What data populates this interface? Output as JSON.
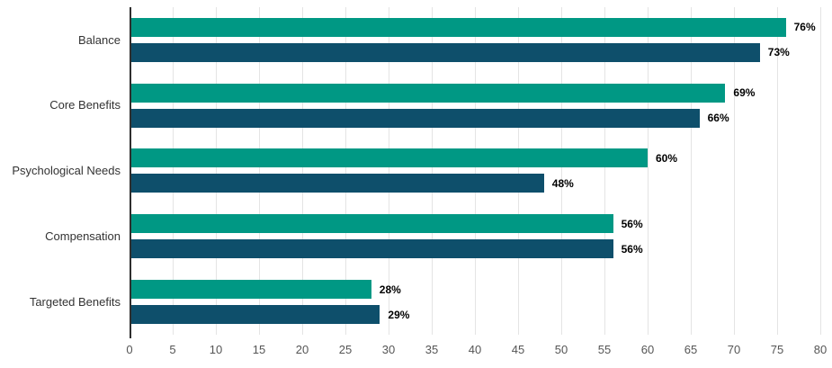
{
  "chart_data": {
    "type": "bar",
    "orientation": "horizontal",
    "title": "",
    "xlabel": "",
    "ylabel": "",
    "xlim": [
      0,
      80
    ],
    "x_ticks": [
      0,
      5,
      10,
      15,
      20,
      25,
      30,
      35,
      40,
      45,
      50,
      55,
      60,
      65,
      70,
      75,
      80
    ],
    "grid": true,
    "legend": "none",
    "categories": [
      "Balance",
      "Core Benefits",
      "Psychological Needs",
      "Compensation",
      "Targeted Benefits"
    ],
    "series": [
      {
        "name": "series-teal",
        "color": "#009884",
        "values": [
          76,
          69,
          60,
          56,
          28
        ],
        "labels": [
          "76%",
          "69%",
          "60%",
          "56%",
          "28%"
        ]
      },
      {
        "name": "series-navy",
        "color": "#0e4f6b",
        "values": [
          73,
          66,
          48,
          56,
          29
        ],
        "labels": [
          "73%",
          "66%",
          "48%",
          "56%",
          "29%"
        ]
      }
    ],
    "value_label_format": "{value}%"
  },
  "colors": {
    "series_teal": "#009884",
    "series_navy": "#0e4f6b",
    "gridline": "#e4e4e4",
    "axis_line": "#2f2f2f",
    "category_label": "#333333",
    "tick_label": "#555555",
    "value_label": "#000000",
    "background": "#ffffff"
  }
}
